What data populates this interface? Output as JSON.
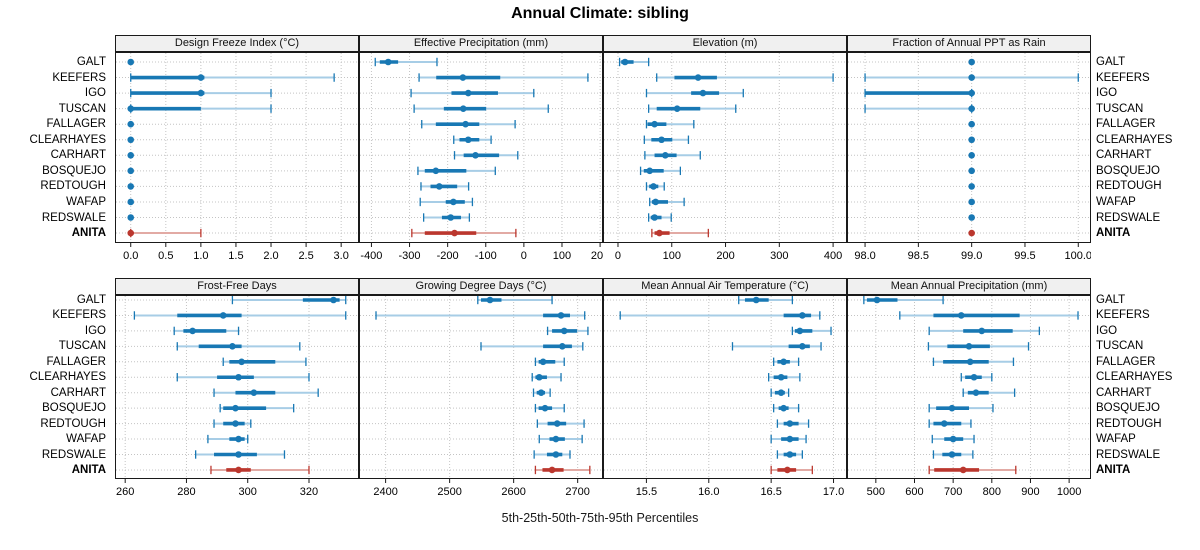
{
  "title": "Annual Climate: sibling",
  "caption": "5th-25th-50th-75th-95th Percentiles",
  "percentile_labels": [
    "5th",
    "25th",
    "50th",
    "75th",
    "95th"
  ],
  "sites": [
    "GALT",
    "KEEFERS",
    "IGO",
    "TUSCAN",
    "FALLAGER",
    "CLEARHAYES",
    "CARHART",
    "BOSQUEJO",
    "REDTOUGH",
    "WAFAP",
    "REDSWALE",
    "ANITA"
  ],
  "highlight_site": "ANITA",
  "colors": {
    "series": "#1878b4",
    "series_light": "#a7cde6",
    "highlight": "#bb372e",
    "highlight_light": "#e2aaa4",
    "strip_bg": "#f0f0f0",
    "grid": "#c4c4c4",
    "border": "#1a1a1a"
  },
  "chart_data": {
    "type": "percentile-dotplot-grid",
    "layout": "2 rows x 4 cols of panels, sites on y axis, blue = reference sites, red = ANITA",
    "panels": [
      {
        "row": 0,
        "col": 0,
        "title": "Design Freeze Index (°C)",
        "xlim": [
          -0.21,
          3.24
        ],
        "ticks": [
          0,
          0.5,
          1,
          1.5,
          2,
          2.5,
          3
        ],
        "tick_labels": [
          "0.0",
          "0.5",
          "1.0",
          "1.5",
          "2.0",
          "2.5",
          "3.0"
        ],
        "values": [
          [
            0,
            0,
            0,
            0,
            0
          ],
          [
            0,
            0,
            1.0,
            1.05,
            2.9
          ],
          [
            0,
            0,
            1.0,
            1.05,
            2.0
          ],
          [
            0,
            0,
            0,
            1.0,
            2.0
          ],
          [
            0,
            0,
            0,
            0,
            0
          ],
          [
            0,
            0,
            0,
            0,
            0
          ],
          [
            0,
            0,
            0,
            0,
            0
          ],
          [
            0,
            0,
            0,
            0,
            0
          ],
          [
            0,
            0,
            0,
            0,
            0
          ],
          [
            0,
            0,
            0,
            0,
            0
          ],
          [
            0,
            0,
            0,
            0,
            0
          ],
          [
            0,
            0,
            0,
            0,
            1.0
          ]
        ]
      },
      {
        "row": 0,
        "col": 1,
        "title": "Effective Precipitation (mm)",
        "xlim": [
          -430,
          205
        ],
        "ticks": [
          -400,
          -300,
          -200,
          -100,
          0,
          100,
          200
        ],
        "tick_labels": [
          "-400",
          "-300",
          "-200",
          "-100",
          "0",
          "100",
          "200"
        ],
        "values": [
          [
            -390,
            -378,
            -356,
            -330,
            -228
          ],
          [
            -275,
            -230,
            -160,
            -62,
            168
          ],
          [
            -296,
            -190,
            -146,
            -68,
            26
          ],
          [
            -288,
            -210,
            -159,
            -99,
            64
          ],
          [
            -268,
            -231,
            -153,
            -117,
            -23
          ],
          [
            -184,
            -169,
            -146,
            -117,
            -86
          ],
          [
            -182,
            -158,
            -127,
            -65,
            -16
          ],
          [
            -278,
            -260,
            -231,
            -151,
            -75
          ],
          [
            -270,
            -245,
            -222,
            -175,
            -145
          ],
          [
            -272,
            -205,
            -185,
            -155,
            -135
          ],
          [
            -263,
            -215,
            -192,
            -165,
            -143
          ],
          [
            -294,
            -260,
            -182,
            -125,
            -21
          ]
        ]
      },
      {
        "row": 0,
        "col": 2,
        "title": "Elevation (m)",
        "xlim": [
          -26,
          424
        ],
        "ticks": [
          0,
          100,
          200,
          300,
          400
        ],
        "tick_labels": [
          "0",
          "100",
          "200",
          "300",
          "400"
        ],
        "values": [
          [
            3,
            6,
            13,
            29,
            57
          ],
          [
            72,
            105,
            149,
            184,
            400
          ],
          [
            53,
            136,
            158,
            188,
            233
          ],
          [
            57,
            72,
            110,
            153,
            219
          ],
          [
            53,
            55,
            68,
            90,
            141
          ],
          [
            49,
            62,
            81,
            101,
            131
          ],
          [
            50,
            68,
            88,
            109,
            153
          ],
          [
            42,
            48,
            59,
            85,
            116
          ],
          [
            53,
            58,
            66,
            75,
            86
          ],
          [
            59,
            63,
            70,
            93,
            123
          ],
          [
            57,
            61,
            68,
            81,
            99
          ],
          [
            63,
            68,
            77,
            96,
            168
          ]
        ]
      },
      {
        "row": 0,
        "col": 3,
        "title": "Fraction of Annual PPT as Rain",
        "xlim": [
          97.84,
          100.11
        ],
        "ticks": [
          98,
          98.5,
          99,
          99.5,
          100
        ],
        "tick_labels": [
          "98.0",
          "98.5",
          "99.0",
          "99.5",
          "100.0"
        ],
        "values": [
          [
            99,
            99,
            99,
            99,
            99
          ],
          [
            98,
            99,
            99,
            99,
            100
          ],
          [
            98,
            98,
            99,
            99,
            99
          ],
          [
            98,
            99,
            99,
            99,
            99
          ],
          [
            99,
            99,
            99,
            99,
            99
          ],
          [
            99,
            99,
            99,
            99,
            99
          ],
          [
            99,
            99,
            99,
            99,
            99
          ],
          [
            99,
            99,
            99,
            99,
            99
          ],
          [
            99,
            99,
            99,
            99,
            99
          ],
          [
            99,
            99,
            99,
            99,
            99
          ],
          [
            99,
            99,
            99,
            99,
            99
          ],
          [
            99,
            99,
            99,
            99,
            99
          ]
        ]
      },
      {
        "row": 1,
        "col": 0,
        "title": "Frost-Free Days",
        "xlim": [
          257,
          336
        ],
        "ticks": [
          260,
          280,
          300,
          320
        ],
        "tick_labels": [
          "260",
          "280",
          "300",
          "320"
        ],
        "values": [
          [
            295,
            318,
            328,
            330,
            332
          ],
          [
            263,
            277,
            292,
            298,
            332
          ],
          [
            276,
            279,
            282,
            293,
            297
          ],
          [
            277,
            284,
            295,
            298,
            317
          ],
          [
            292,
            294,
            298,
            309,
            319
          ],
          [
            277,
            290,
            297,
            302,
            320
          ],
          [
            289,
            296,
            302,
            309,
            323
          ],
          [
            291,
            292,
            296,
            306,
            315
          ],
          [
            289,
            292,
            296,
            299,
            301
          ],
          [
            287,
            294,
            297,
            299,
            300
          ],
          [
            283,
            289,
            297,
            303,
            312
          ],
          [
            288,
            293,
            297,
            301,
            320
          ]
        ]
      },
      {
        "row": 1,
        "col": 1,
        "title": "Growing Degree Days (°C)",
        "xlim": [
          2360,
          2738
        ],
        "ticks": [
          2400,
          2500,
          2600,
          2700
        ],
        "tick_labels": [
          "2400",
          "2500",
          "2600",
          "2700"
        ],
        "values": [
          [
            2544,
            2549,
            2563,
            2581,
            2660
          ],
          [
            2385,
            2646,
            2674,
            2688,
            2711
          ],
          [
            2653,
            2660,
            2679,
            2699,
            2716
          ],
          [
            2549,
            2646,
            2676,
            2691,
            2708
          ],
          [
            2634,
            2639,
            2646,
            2665,
            2679
          ],
          [
            2629,
            2634,
            2640,
            2652,
            2674
          ],
          [
            2631,
            2636,
            2643,
            2649,
            2657
          ],
          [
            2634,
            2639,
            2649,
            2660,
            2679
          ],
          [
            2637,
            2653,
            2668,
            2682,
            2710
          ],
          [
            2640,
            2656,
            2666,
            2680,
            2707
          ],
          [
            2632,
            2652,
            2666,
            2676,
            2688
          ],
          [
            2634,
            2645,
            2660,
            2678,
            2719
          ]
        ]
      },
      {
        "row": 1,
        "col": 2,
        "title": "Mean Annual Air Temperature (°C)",
        "xlim": [
          15.16,
          17.1
        ],
        "ticks": [
          15.5,
          16,
          16.5,
          17
        ],
        "tick_labels": [
          "15.5",
          "16.0",
          "16.5",
          "17.0"
        ],
        "values": [
          [
            16.24,
            16.29,
            16.38,
            16.48,
            16.67
          ],
          [
            15.29,
            16.6,
            16.75,
            16.82,
            16.89
          ],
          [
            16.67,
            16.69,
            16.73,
            16.83,
            16.98
          ],
          [
            16.19,
            16.64,
            16.75,
            16.81,
            16.9
          ],
          [
            16.52,
            16.55,
            16.6,
            16.65,
            16.72
          ],
          [
            16.48,
            16.52,
            16.58,
            16.63,
            16.73
          ],
          [
            16.5,
            16.53,
            16.58,
            16.61,
            16.64
          ],
          [
            16.52,
            16.56,
            16.6,
            16.64,
            16.72
          ],
          [
            16.55,
            16.6,
            16.65,
            16.72,
            16.8
          ],
          [
            16.5,
            16.58,
            16.65,
            16.72,
            16.78
          ],
          [
            16.55,
            16.6,
            16.65,
            16.7,
            16.75
          ],
          [
            16.5,
            16.55,
            16.63,
            16.7,
            16.83
          ]
        ]
      },
      {
        "row": 1,
        "col": 3,
        "title": "Mean Annual Precipitation (mm)",
        "xlim": [
          428,
          1054
        ],
        "ticks": [
          500,
          600,
          700,
          800,
          900,
          1000
        ],
        "tick_labels": [
          "500",
          "600",
          "700",
          "800",
          "900",
          "1000"
        ],
        "values": [
          [
            469,
            477,
            503,
            556,
            674
          ],
          [
            562,
            649,
            721,
            872,
            1023
          ],
          [
            638,
            726,
            774,
            854,
            923
          ],
          [
            636,
            685,
            741,
            795,
            895
          ],
          [
            649,
            674,
            744,
            792,
            856
          ],
          [
            721,
            731,
            754,
            774,
            800
          ],
          [
            726,
            738,
            759,
            792,
            859
          ],
          [
            638,
            656,
            697,
            741,
            803
          ],
          [
            638,
            649,
            677,
            721,
            746
          ],
          [
            646,
            677,
            700,
            726,
            754
          ],
          [
            649,
            672,
            697,
            721,
            751
          ],
          [
            638,
            651,
            726,
            767,
            862
          ]
        ]
      }
    ]
  }
}
